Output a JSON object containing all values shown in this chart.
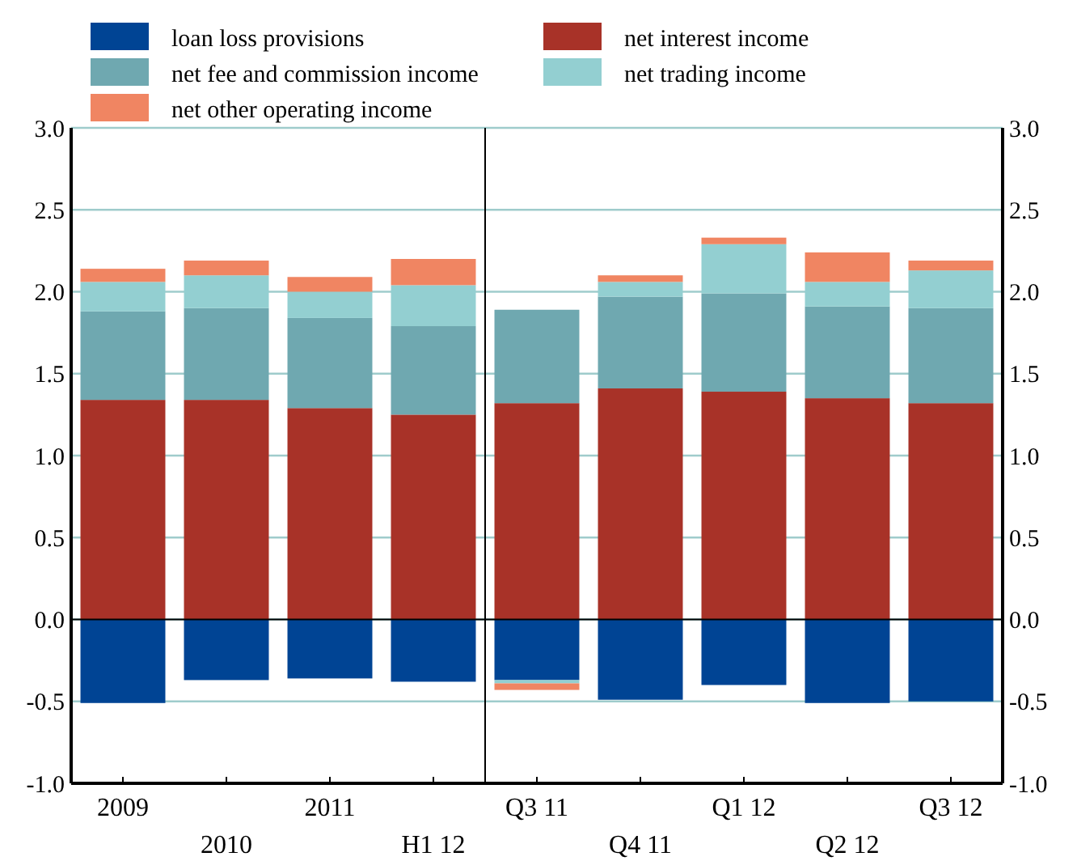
{
  "chart_data": {
    "type": "bar",
    "stacked": true,
    "categories": [
      "2009",
      "2010",
      "2011",
      "H1 12",
      "Q3 11",
      "Q4 11",
      "Q1 12",
      "Q2 12",
      "Q3 12"
    ],
    "series": [
      {
        "name": "loan loss provisions",
        "color": "#004494",
        "values": [
          -0.51,
          -0.37,
          -0.36,
          -0.38,
          -0.37,
          -0.49,
          -0.4,
          -0.51,
          -0.5
        ]
      },
      {
        "name": "net interest income",
        "color": "#a83228",
        "values": [
          1.34,
          1.34,
          1.29,
          1.25,
          1.32,
          1.41,
          1.39,
          1.35,
          1.32
        ]
      },
      {
        "name": "net fee and commission income",
        "color": "#6fa8b0",
        "values": [
          0.54,
          0.56,
          0.55,
          0.54,
          0.57,
          0.56,
          0.6,
          0.56,
          0.58
        ]
      },
      {
        "name": "net trading income",
        "color": "#93cfd1",
        "values": [
          0.18,
          0.2,
          0.16,
          0.25,
          -0.02,
          0.09,
          0.3,
          0.15,
          0.23
        ]
      },
      {
        "name": "net other operating income",
        "color": "#f08562",
        "values": [
          0.08,
          0.09,
          0.09,
          0.16,
          -0.04,
          0.04,
          0.04,
          0.18,
          0.06
        ]
      }
    ],
    "ylim": [
      -1,
      3
    ],
    "yticks": [
      {
        "value": -1,
        "label": "-1.0"
      },
      {
        "value": -0.5,
        "label": "-0.5"
      },
      {
        "value": 0,
        "label": "0.0"
      },
      {
        "value": 0.5,
        "label": "0.5"
      },
      {
        "value": 1,
        "label": "1.0"
      },
      {
        "value": 1.5,
        "label": "1.5"
      },
      {
        "value": 2,
        "label": "2.0"
      },
      {
        "value": 2.5,
        "label": "2.5"
      },
      {
        "value": 3,
        "label": "3.0"
      }
    ],
    "y2lim": [
      -1,
      3
    ],
    "y2ticks": [
      {
        "value": -1,
        "label": "-1.0"
      },
      {
        "value": -0.5,
        "label": "-0.5"
      },
      {
        "value": 0,
        "label": "0.0"
      },
      {
        "value": 0.5,
        "label": "0.5"
      },
      {
        "value": 1,
        "label": "1.0"
      },
      {
        "value": 1.5,
        "label": "1.5"
      },
      {
        "value": 2,
        "label": "2.0"
      },
      {
        "value": 2.5,
        "label": "2.5"
      },
      {
        "value": 3,
        "label": "3.0"
      }
    ],
    "grid": "y",
    "legend": "top"
  }
}
